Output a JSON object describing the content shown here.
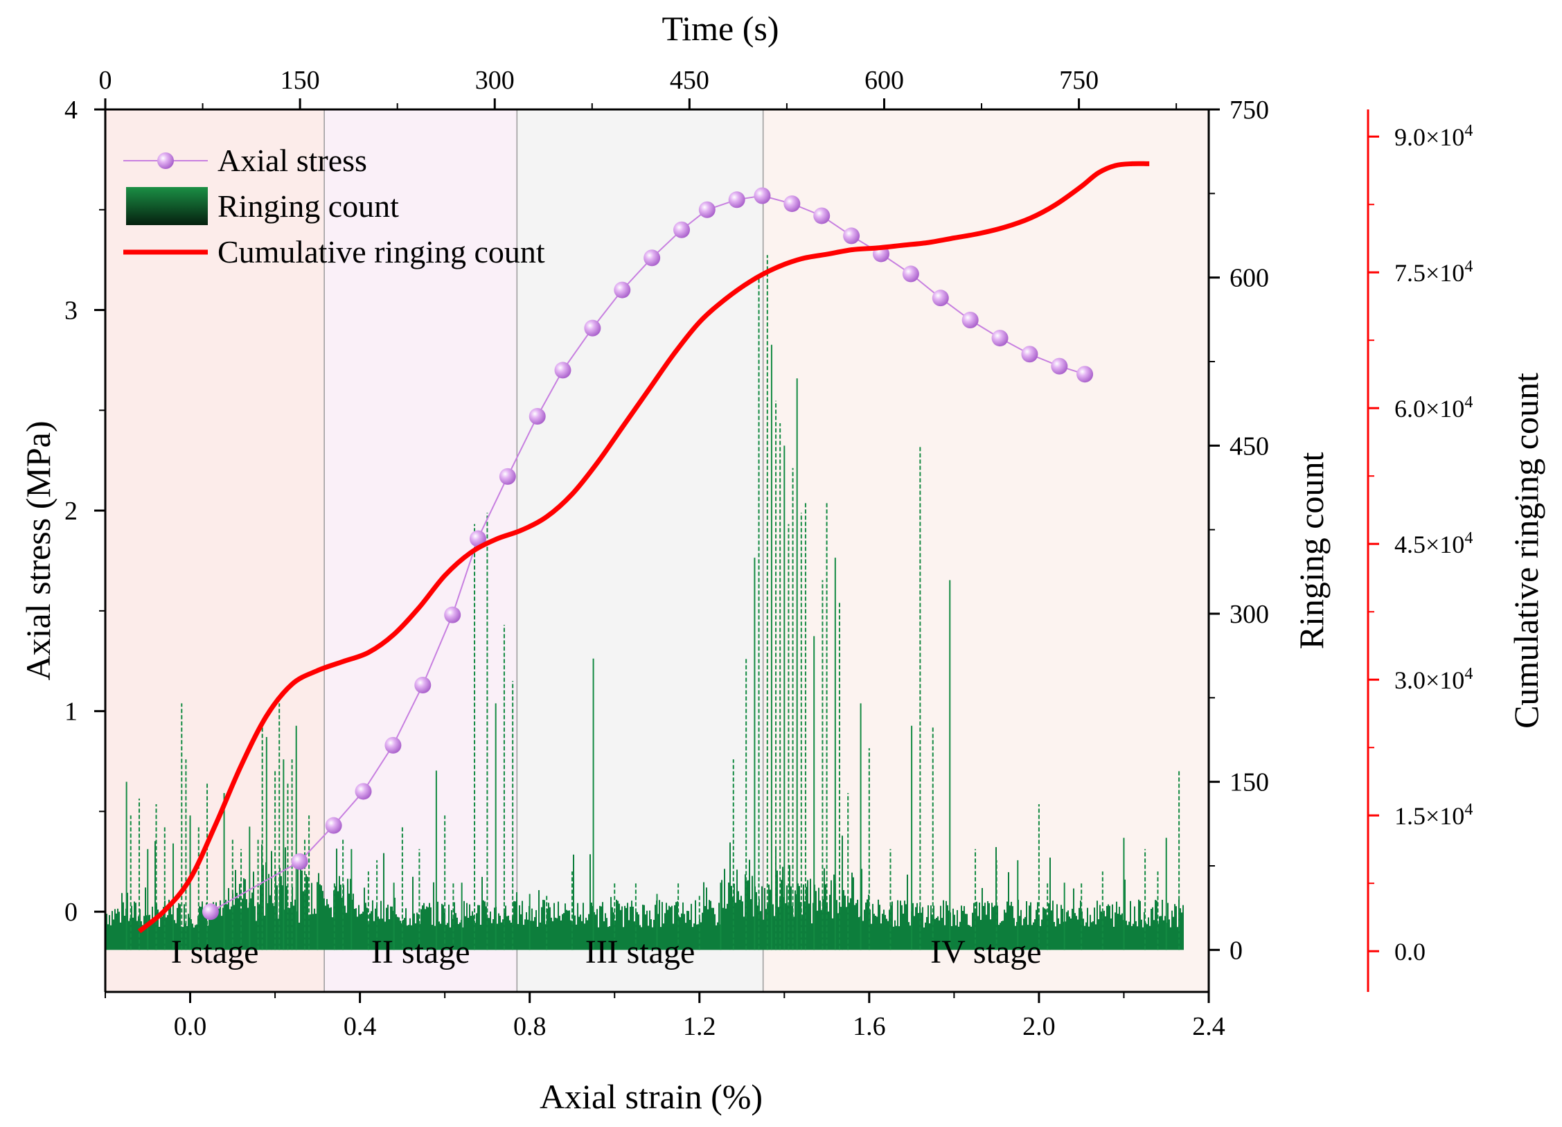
{
  "chart_data": {
    "type": "line",
    "title": "",
    "xlabel": "Axial strain (%)",
    "xlabel_top": "Time (s)",
    "ylabel": "Axial stress (MPa)",
    "ylabel_right": "Ringing count",
    "ylabel_right2": "Cumulative ringing count",
    "xlim": [
      -0.2,
      2.4
    ],
    "xticks": [
      0.0,
      0.4,
      0.8,
      1.2,
      1.6,
      2.0,
      2.4
    ],
    "xtick_labels": [
      "0.0",
      "0.4",
      "0.8",
      "1.2",
      "1.6",
      "2.0",
      "2.4"
    ],
    "top_xlim": [
      0,
      850
    ],
    "top_xticks": [
      0,
      150,
      300,
      450,
      600,
      750
    ],
    "top_xtick_labels": [
      "0",
      "150",
      "300",
      "450",
      "600",
      "750"
    ],
    "ylim": [
      -0.4,
      4
    ],
    "yticks": [
      0,
      1,
      2,
      3,
      4
    ],
    "ytick_labels": [
      "0",
      "1",
      "2",
      "3",
      "4"
    ],
    "y2lim": [
      -37.5,
      750
    ],
    "y2ticks": [
      0,
      150,
      300,
      450,
      600,
      750
    ],
    "y2tick_labels": [
      "0",
      "150",
      "300",
      "450",
      "600",
      "750"
    ],
    "y3lim": [
      -4500,
      93000
    ],
    "y3ticks": [
      0,
      15000,
      30000,
      45000,
      60000,
      75000,
      90000
    ],
    "y3tick_labels": [
      "0.0",
      "1.5×10",
      "3.0×10",
      "4.5×10",
      "6.0×10",
      "7.5×10",
      "9.0×10"
    ],
    "y3tick_exponent": "4",
    "stages": [
      {
        "label": "I stage",
        "from": -0.2,
        "to": 0.316,
        "color": "#fcecea"
      },
      {
        "label": "II stage",
        "from": 0.316,
        "to": 0.77,
        "color": "#faf0f8"
      },
      {
        "label": "III stage",
        "from": 0.77,
        "to": 1.35,
        "color": "#f4f4f4"
      },
      {
        "label": "IV stage",
        "from": 1.35,
        "to": 2.4,
        "color": "#fcf3f0"
      }
    ],
    "series": [
      {
        "name": "Axial stress",
        "color": "#c77fe0",
        "x": [
          0.048,
          0.258,
          0.338,
          0.408,
          0.478,
          0.548,
          0.618,
          0.678,
          0.748,
          0.818,
          0.878,
          0.948,
          1.018,
          1.088,
          1.158,
          1.218,
          1.288,
          1.348,
          1.418,
          1.488,
          1.558,
          1.628,
          1.698,
          1.768,
          1.838,
          1.908,
          1.978,
          2.048,
          2.108
        ],
        "values": [
          0.0,
          0.25,
          0.43,
          0.6,
          0.83,
          1.13,
          1.48,
          1.86,
          2.17,
          2.47,
          2.7,
          2.91,
          3.1,
          3.26,
          3.4,
          3.5,
          3.55,
          3.57,
          3.53,
          3.47,
          3.37,
          3.28,
          3.18,
          3.06,
          2.95,
          2.86,
          2.78,
          2.72,
          2.68
        ]
      },
      {
        "name": "Ringing count",
        "color": "#0a7a3a",
        "spikes_x": [
          -0.15,
          -0.14,
          -0.12,
          -0.1,
          -0.08,
          -0.06,
          -0.04,
          -0.02,
          -0.01,
          0.0,
          0.02,
          0.04,
          0.08,
          0.1,
          0.12,
          0.14,
          0.16,
          0.17,
          0.18,
          0.2,
          0.21,
          0.22,
          0.23,
          0.24,
          0.25,
          0.27,
          0.28,
          0.3,
          0.34,
          0.36,
          0.38,
          0.42,
          0.44,
          0.48,
          0.5,
          0.54,
          0.58,
          0.6,
          0.62,
          0.64,
          0.67,
          0.7,
          0.72,
          0.74,
          0.76,
          0.8,
          0.84,
          0.9,
          0.95,
          1.0,
          1.05,
          1.1,
          1.15,
          1.2,
          1.25,
          1.28,
          1.31,
          1.33,
          1.34,
          1.36,
          1.37,
          1.38,
          1.39,
          1.4,
          1.41,
          1.42,
          1.43,
          1.44,
          1.45,
          1.47,
          1.49,
          1.5,
          1.52,
          1.53,
          1.55,
          1.58,
          1.6,
          1.65,
          1.7,
          1.72,
          1.75,
          1.79,
          1.85,
          1.9,
          1.95,
          2.0,
          2.02,
          2.06,
          2.1,
          2.15,
          2.2,
          2.25,
          2.28,
          2.3,
          2.33
        ],
        "spikes_values": [
          150,
          120,
          135,
          90,
          130,
          110,
          95,
          220,
          170,
          120,
          110,
          150,
          140,
          100,
          90,
          110,
          100,
          200,
          190,
          160,
          220,
          170,
          150,
          170,
          200,
          100,
          120,
          60,
          60,
          100,
          90,
          70,
          80,
          60,
          110,
          90,
          160,
          120,
          60,
          60,
          380,
          390,
          220,
          290,
          240,
          50,
          50,
          70,
          260,
          60,
          60,
          50,
          60,
          50,
          60,
          170,
          260,
          350,
          600,
          620,
          540,
          490,
          470,
          450,
          380,
          430,
          510,
          390,
          400,
          280,
          330,
          400,
          350,
          310,
          140,
          220,
          180,
          90,
          200,
          450,
          200,
          330,
          90,
          80,
          80,
          130,
          60,
          60,
          60,
          70,
          100,
          90,
          70,
          100,
          160
        ]
      },
      {
        "name": "Cumulative ringing count",
        "color": "#ff0000",
        "x": [
          -0.12,
          -0.06,
          0.0,
          0.06,
          0.12,
          0.18,
          0.24,
          0.3,
          0.36,
          0.42,
          0.48,
          0.54,
          0.6,
          0.66,
          0.72,
          0.78,
          0.84,
          0.9,
          0.96,
          1.02,
          1.08,
          1.14,
          1.2,
          1.26,
          1.32,
          1.38,
          1.44,
          1.5,
          1.56,
          1.62,
          1.68,
          1.74,
          1.8,
          1.86,
          1.92,
          1.98,
          2.04,
          2.1,
          2.14,
          2.18,
          2.22,
          2.26
        ],
        "values": [
          2200,
          4500,
          8000,
          14000,
          20500,
          26000,
          29500,
          31000,
          32000,
          33000,
          35000,
          38000,
          41500,
          44000,
          45500,
          46500,
          48000,
          50500,
          54000,
          58000,
          62000,
          66000,
          69500,
          72000,
          74000,
          75500,
          76500,
          77000,
          77500,
          77700,
          78000,
          78300,
          78800,
          79300,
          80000,
          81000,
          82500,
          84500,
          86000,
          86800,
          87000,
          87000
        ]
      }
    ],
    "legend": {
      "position": "top-left",
      "entries": [
        "Axial stress",
        "Ringing count",
        "Cumulative ringing count"
      ]
    }
  }
}
